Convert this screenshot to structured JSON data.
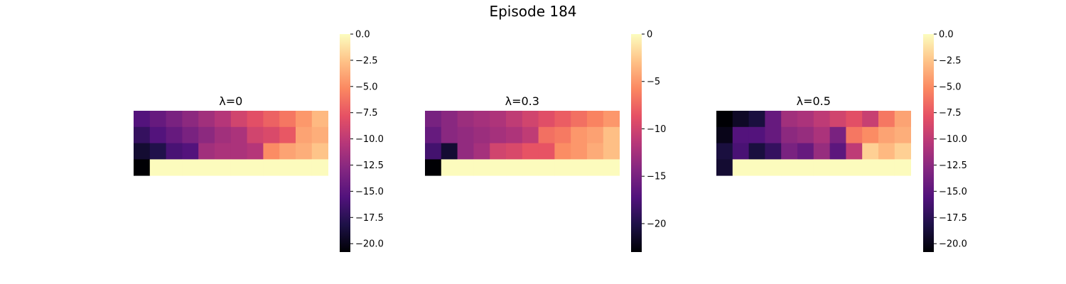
{
  "figure": {
    "title": "Episode 184"
  },
  "colormap": [
    "#000004",
    "#1d1147",
    "#51127c",
    "#822681",
    "#b73779",
    "#e65164",
    "#fb8861",
    "#fec287",
    "#fcfdbf"
  ],
  "chart_data": [
    {
      "type": "heatmap",
      "title": "λ=0",
      "rows": 4,
      "cols": 12,
      "vmin": -20.8,
      "vmax": 0,
      "colorbar_ticks": [
        0,
        -2.5,
        -5,
        -7.5,
        -10,
        -12.5,
        -15,
        -17.5,
        -20
      ],
      "colorbar_tick_labels": [
        "0.0",
        "−2.5",
        "−5.0",
        "−7.5",
        "−10.0",
        "−12.5",
        "−15.0",
        "−17.5",
        "−20.0"
      ],
      "values": [
        [
          -15.5,
          -14.5,
          -13.5,
          -12.5,
          -11.5,
          -10.5,
          -9.0,
          -8.0,
          -7.0,
          -6.0,
          -4.5,
          -3.0
        ],
        [
          -17.0,
          -15.5,
          -14.5,
          -13.5,
          -12.5,
          -11.5,
          -11.0,
          -9.0,
          -8.5,
          -7.5,
          -4.0,
          -3.5
        ],
        [
          -19.0,
          -18.0,
          -16.0,
          -15.5,
          -11.5,
          -11.0,
          -11.0,
          -10.5,
          -5.0,
          -4.0,
          -3.5,
          -2.5
        ],
        [
          -20.8,
          -0.1,
          -0.1,
          -0.1,
          -0.1,
          -0.1,
          -0.1,
          -0.1,
          -0.1,
          -0.1,
          -0.1,
          -0.1
        ]
      ]
    },
    {
      "type": "heatmap",
      "title": "λ=0.3",
      "rows": 4,
      "cols": 12,
      "vmin": -23,
      "vmax": 0,
      "colorbar_ticks": [
        0,
        -5,
        -10,
        -15,
        -20
      ],
      "colorbar_tick_labels": [
        "0",
        "−5",
        "−10",
        "−15",
        "−20"
      ],
      "values": [
        [
          -15.0,
          -14.0,
          -13.0,
          -12.5,
          -12.0,
          -11.0,
          -10.0,
          -9.0,
          -8.0,
          -7.0,
          -6.0,
          -5.0
        ],
        [
          -16.0,
          -14.0,
          -13.5,
          -13.0,
          -12.5,
          -12.0,
          -11.0,
          -7.0,
          -6.5,
          -5.0,
          -4.5,
          -3.0
        ],
        [
          -18.0,
          -21.0,
          -13.5,
          -12.5,
          -10.0,
          -9.5,
          -8.5,
          -8.5,
          -5.5,
          -5.0,
          -4.0,
          -3.0
        ],
        [
          -23.0,
          -0.1,
          -0.1,
          -0.1,
          -0.1,
          -0.1,
          -0.1,
          -0.1,
          -0.1,
          -0.1,
          -0.1,
          -0.1
        ]
      ]
    },
    {
      "type": "heatmap",
      "title": "λ=0.5",
      "rows": 4,
      "cols": 12,
      "vmin": -20.8,
      "vmax": 0,
      "colorbar_ticks": [
        0,
        -2.5,
        -5,
        -7.5,
        -10,
        -12.5,
        -15,
        -17.5,
        -20
      ],
      "colorbar_tick_labels": [
        "0.0",
        "−2.5",
        "−5.0",
        "−7.5",
        "−10.0",
        "−12.5",
        "−15.0",
        "−17.5",
        "−20.0"
      ],
      "values": [
        [
          -20.8,
          -19.5,
          -18.5,
          -14.5,
          -11.5,
          -11.0,
          -10.0,
          -9.0,
          -8.0,
          -9.5,
          -6.0,
          -4.0
        ],
        [
          -20.0,
          -15.5,
          -15.5,
          -14.5,
          -12.5,
          -12.0,
          -11.0,
          -13.5,
          -6.0,
          -5.0,
          -4.0,
          -3.5
        ],
        [
          -18.5,
          -16.0,
          -18.5,
          -17.0,
          -13.5,
          -14.5,
          -12.0,
          -15.0,
          -10.0,
          -2.0,
          -3.0,
          -2.0
        ],
        [
          -19.0,
          -0.1,
          -0.1,
          -0.1,
          -0.1,
          -0.1,
          -0.1,
          -0.1,
          -0.1,
          -0.1,
          -0.1,
          -0.1
        ]
      ]
    }
  ]
}
